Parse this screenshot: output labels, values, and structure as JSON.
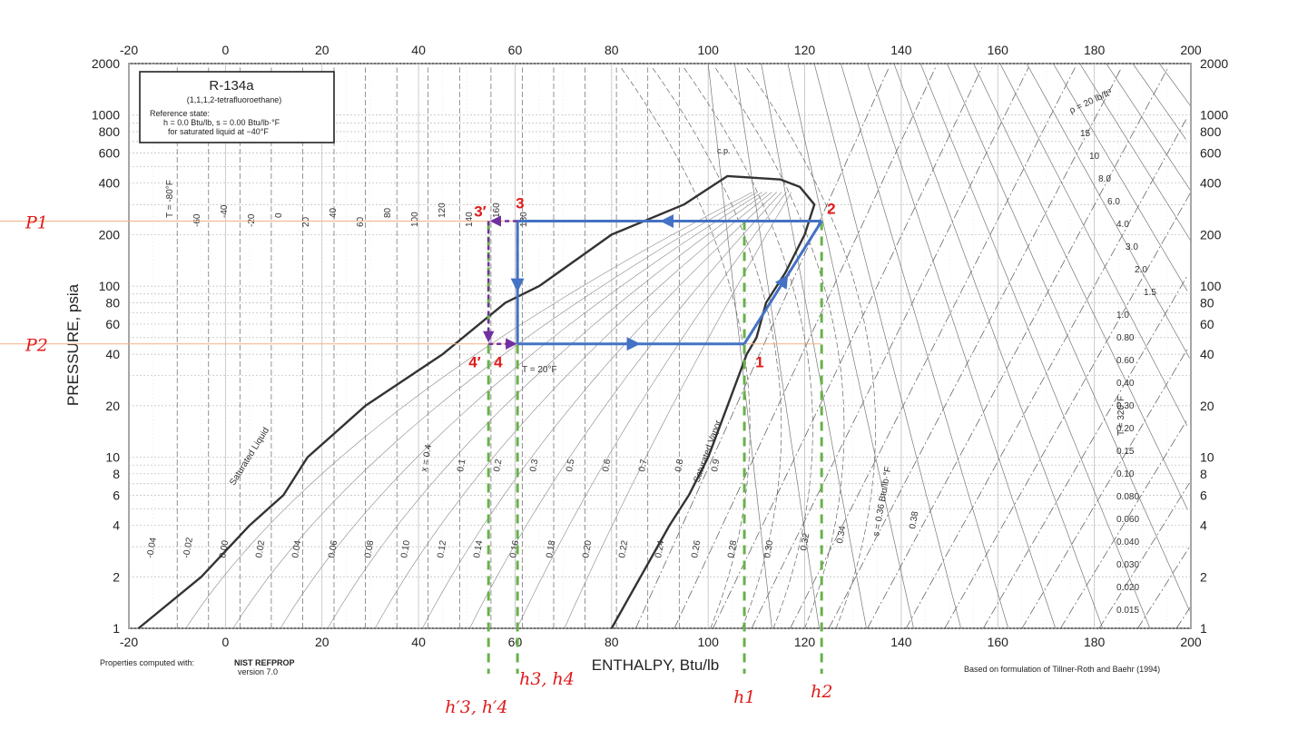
{
  "chart_data": {
    "type": "line",
    "x_scale": "linear",
    "y_scale": "log",
    "xlim": [
      -20,
      200
    ],
    "ylim": [
      1,
      2000
    ],
    "x_ticks": [
      "-20",
      "0",
      "20",
      "40",
      "60",
      "80",
      "100",
      "120",
      "140",
      "160",
      "180",
      "200"
    ],
    "x_tick_values": [
      -20,
      0,
      20,
      40,
      60,
      80,
      100,
      120,
      140,
      160,
      180,
      200
    ],
    "y_ticks": [
      "1",
      "2",
      "4",
      "6",
      "8",
      "10",
      "20",
      "40",
      "60",
      "80",
      "100",
      "200",
      "400",
      "600",
      "800",
      "1000",
      "2000"
    ],
    "y_tick_values": [
      1,
      2,
      4,
      6,
      8,
      10,
      20,
      40,
      60,
      80,
      100,
      200,
      400,
      600,
      800,
      1000,
      2000
    ],
    "xlabel": "ENTHALPY, Btu/lb",
    "ylabel": "PRESSURE, psia",
    "grid": true,
    "info_box": {
      "title": "R-134a",
      "subtitle": "(1,1,1,2-tetrafluoroethane)",
      "line1": "Reference state:",
      "line2": "h = 0.0 Btu/lb,   s = 0.00 Btu/lb·°F",
      "line3": "for saturated liquid at −40°F"
    },
    "footer_left_1": "Properties computed with:",
    "footer_left_2": "NIST REFPROP",
    "footer_left_3": "version 7.0",
    "footer_right": "Based on formulation of Tillner-Roth and Baehr (1994)",
    "saturation_labels": {
      "liquid": "Saturated Liquid",
      "vapor": "Saturated Vapor"
    },
    "critical_label": "c.p.",
    "dome": {
      "liquid": [
        [
          -18,
          1
        ],
        [
          -5,
          2
        ],
        [
          5,
          4
        ],
        [
          12,
          6
        ],
        [
          17,
          10
        ],
        [
          29,
          20
        ],
        [
          45,
          40
        ],
        [
          58,
          80
        ],
        [
          65,
          100
        ],
        [
          80,
          200
        ],
        [
          95,
          300
        ],
        [
          104,
          440
        ]
      ],
      "vapor": [
        [
          104,
          440
        ],
        [
          115,
          420
        ],
        [
          119,
          380
        ],
        [
          122,
          300
        ],
        [
          120,
          200
        ],
        [
          116,
          120
        ],
        [
          112,
          80
        ],
        [
          110,
          50
        ],
        [
          108,
          40
        ],
        [
          104,
          20
        ],
        [
          100,
          10
        ],
        [
          96,
          6
        ],
        [
          92,
          4
        ],
        [
          86,
          2
        ],
        [
          80,
          1
        ]
      ]
    },
    "cycle": {
      "points": [
        {
          "label": "1",
          "h": 107.5,
          "P": 46
        },
        {
          "label": "2",
          "h": 123.5,
          "P": 240
        },
        {
          "label": "3",
          "h": 60.5,
          "P": 240
        },
        {
          "label": "4",
          "h": 60.5,
          "P": 46
        }
      ],
      "ideal_points": [
        {
          "label": "3′",
          "h": 54.5,
          "P": 240
        },
        {
          "label": "4′",
          "h": 54.5,
          "P": 46
        }
      ],
      "pressures": [
        {
          "label": "P1",
          "P": 240
        },
        {
          "label": "P2",
          "P": 46
        }
      ],
      "enthalpies": [
        {
          "label": "h1",
          "h": 107.5
        },
        {
          "label": "h2",
          "h": 123.5
        },
        {
          "label": "h3, h4",
          "h": 60.5
        },
        {
          "label": "h′3, h′4",
          "h": 54.5
        }
      ]
    },
    "isotherm_labels": [
      "T = -80°F",
      "-60",
      "-40",
      "-20",
      "0",
      "20",
      "40",
      "60",
      "80",
      "100",
      "120",
      "140",
      "160",
      "180",
      "T = 20°F",
      "T = 320°F"
    ],
    "quality_labels": [
      "x = 0.4",
      "0.1",
      "0.2",
      "0.3",
      "0.5",
      "0.6",
      "0.7",
      "0.8",
      "0.9"
    ],
    "density_labels": [
      "ρ = 20 lb/ft³",
      "15",
      "10",
      "8.0",
      "6.0",
      "4.0",
      "3.0",
      "2.0",
      "1.5",
      "1.0",
      "0.80",
      "0.60",
      "0.40",
      "0.30",
      "0.20",
      "0.15",
      "0.10",
      "0.080",
      "0.060",
      "0.040",
      "0.030",
      "0.020",
      "0.015"
    ],
    "entropy_labels": [
      "-0.04",
      "-0.02",
      "0.00",
      "0.02",
      "0.04",
      "0.06",
      "0.08",
      "0.10",
      "0.12",
      "0.14",
      "0.16",
      "0.18",
      "0.20",
      "0.22",
      "0.24",
      "0.26",
      "0.28",
      "0.30",
      "0.32",
      "0.34",
      "s = 0.36 Btu/lb·°F",
      "0.38"
    ]
  },
  "colors": {
    "cycle": "#4472c4",
    "ideal": "#7030a0",
    "dashed": "#6ab04c",
    "red": "#e01b1b",
    "pressure_line": "#f4b183"
  }
}
